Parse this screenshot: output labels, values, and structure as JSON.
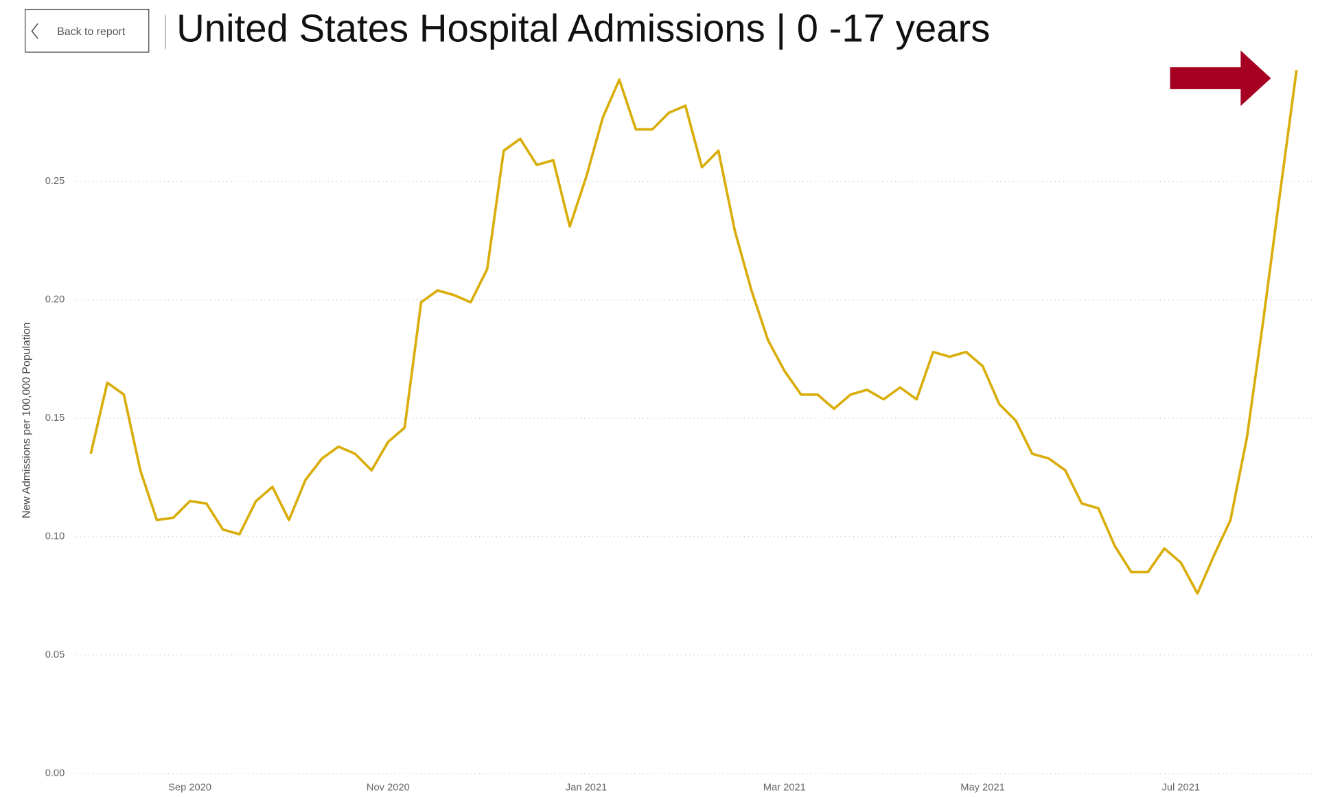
{
  "button": {
    "label": "Back to report"
  },
  "chart_data": {
    "type": "line",
    "title": "United States Hospital Admissions | 0 -17 years",
    "y_label": "New Admissions per 100,000 Population",
    "categories": [
      null,
      null,
      null,
      null,
      null,
      null,
      "Sep 2020",
      null,
      null,
      null,
      null,
      null,
      null,
      null,
      null,
      null,
      null,
      null,
      "Nov 2020",
      null,
      null,
      null,
      null,
      null,
      null,
      null,
      null,
      null,
      null,
      null,
      "Jan 2021",
      null,
      null,
      null,
      null,
      null,
      null,
      null,
      null,
      null,
      null,
      null,
      "Mar 2021",
      null,
      null,
      null,
      null,
      null,
      null,
      null,
      null,
      null,
      null,
      null,
      "May 2021",
      null,
      null,
      null,
      null,
      null,
      null,
      null,
      null,
      null,
      null,
      null,
      "Jul 2021",
      null,
      null,
      null,
      null,
      null,
      null,
      null
    ],
    "series": [
      {
        "color": "#d9ad0a",
        "values": [
          0.135,
          0.165,
          0.16,
          0.128,
          0.107,
          0.108,
          0.115,
          0.114,
          0.103,
          0.101,
          0.115,
          0.121,
          0.107,
          0.124,
          0.133,
          0.138,
          0.135,
          0.128,
          0.14,
          0.146,
          0.199,
          0.204,
          0.202,
          0.199,
          0.213,
          0.263,
          0.268,
          0.257,
          0.259,
          0.231,
          0.252,
          0.277,
          0.293,
          0.272,
          0.272,
          0.279,
          0.282,
          0.256,
          0.263,
          0.229,
          0.204,
          0.183,
          0.17,
          0.16,
          0.16,
          0.154,
          0.16,
          0.162,
          0.158,
          0.163,
          0.158,
          0.178,
          0.176,
          0.178,
          0.172,
          0.156,
          0.149,
          0.135,
          0.133,
          0.128,
          0.114,
          0.112,
          0.096,
          0.085,
          0.085,
          0.095,
          0.089,
          0.076,
          0.092,
          0.107,
          0.142,
          0.192,
          0.245,
          0.297
        ]
      }
    ],
    "ylim": [
      0,
      0.3
    ],
    "yticks": [
      {
        "value": 0,
        "label": "0.00"
      },
      0.05,
      {
        "value": 0.1,
        "label": "0.10"
      },
      0.15,
      {
        "value": 0.2,
        "label": "0.20"
      },
      0.25
    ],
    "grid": true
  }
}
